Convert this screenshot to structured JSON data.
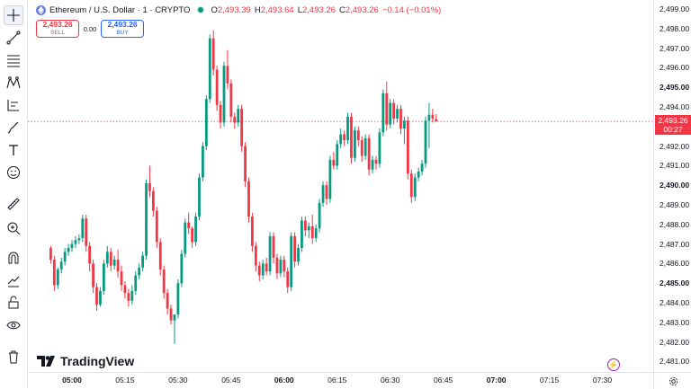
{
  "legend": {
    "symbol": "Ethereum / U.S. Dollar · 1 · CRYPTO",
    "o_label": "O",
    "o_value": "2,493.39",
    "h_label": "H",
    "h_value": "2,493.64",
    "l_label": "L",
    "l_value": "2,493.26",
    "c_label": "C",
    "c_value": "2,493.26",
    "change": "−0.14 (−0.01%)"
  },
  "trade": {
    "sell_price": "2,493.26",
    "sell_label": "SELL",
    "spread": "0.00",
    "buy_price": "2,493.26",
    "buy_label": "BUY"
  },
  "price_scale": {
    "labels": [
      "2,499.00",
      "2,498.00",
      "2,497.00",
      "2,496.00",
      "2,495.00",
      "2,494.00",
      "2,492.00",
      "2,491.00",
      "2,490.00",
      "2,489.00",
      "2,488.00",
      "2,487.00",
      "2,486.00",
      "2,485.00",
      "2,484.00",
      "2,483.00",
      "2,482.00",
      "2,481.00"
    ],
    "current_price": "2,493.26",
    "countdown": "00:27"
  },
  "time_scale": {
    "labels": [
      "05:00",
      "05:15",
      "05:30",
      "05:45",
      "06:00",
      "06:15",
      "06:30",
      "06:45",
      "07:00",
      "07:15",
      "07:30"
    ]
  },
  "logo": "TradingView",
  "colors": {
    "up": "#089981",
    "down": "#f23645",
    "accent": "#2962ff"
  },
  "toolbar_icons": [
    "crosshair-icon",
    "trend-line-icon",
    "fib-icon",
    "pattern-icon",
    "prediction-icon",
    "brush-icon",
    "text-icon",
    "emoji-icon",
    "ruler-icon",
    "zoom-icon",
    "magnet-icon",
    "lock-drawing-icon",
    "unlock-icon",
    "eye-icon",
    "trash-icon"
  ],
  "chart_data": {
    "type": "candlestick",
    "ylim": [
      2481.0,
      2499.5
    ],
    "x_range": [
      "04:54",
      "07:35"
    ],
    "current_price": 2493.26,
    "candles": [
      [
        2486.8,
        2486.9,
        2486.0,
        2486.2
      ],
      [
        2486.2,
        2486.4,
        2484.6,
        2484.9
      ],
      [
        2484.9,
        2485.8,
        2484.7,
        2485.7
      ],
      [
        2485.7,
        2486.3,
        2485.5,
        2486.1
      ],
      [
        2486.1,
        2486.8,
        2485.9,
        2486.6
      ],
      [
        2486.6,
        2487.0,
        2486.4,
        2486.8
      ],
      [
        2486.8,
        2487.2,
        2486.6,
        2487.0
      ],
      [
        2487.0,
        2487.4,
        2486.8,
        2487.2
      ],
      [
        2487.2,
        2487.5,
        2487.0,
        2487.3
      ],
      [
        2487.3,
        2488.5,
        2487.1,
        2488.3
      ],
      [
        2488.3,
        2488.5,
        2486.6,
        2486.9
      ],
      [
        2486.9,
        2487.1,
        2485.6,
        2486.0
      ],
      [
        2486.0,
        2486.2,
        2484.5,
        2484.8
      ],
      [
        2484.8,
        2485.0,
        2483.6,
        2483.9
      ],
      [
        2483.9,
        2484.8,
        2483.8,
        2484.6
      ],
      [
        2484.6,
        2486.2,
        2484.4,
        2486.0
      ],
      [
        2486.0,
        2486.9,
        2485.8,
        2486.6
      ],
      [
        2486.6,
        2486.8,
        2485.6,
        2485.9
      ],
      [
        2485.9,
        2486.4,
        2485.7,
        2486.2
      ],
      [
        2486.2,
        2486.7,
        2485.3,
        2485.6
      ],
      [
        2485.6,
        2485.9,
        2484.6,
        2484.9
      ],
      [
        2484.9,
        2485.1,
        2484.2,
        2484.5
      ],
      [
        2484.5,
        2484.7,
        2483.8,
        2484.1
      ],
      [
        2484.1,
        2484.9,
        2483.9,
        2484.6
      ],
      [
        2484.6,
        2485.6,
        2484.4,
        2485.4
      ],
      [
        2485.4,
        2486.0,
        2485.2,
        2485.8
      ],
      [
        2485.8,
        2486.6,
        2485.6,
        2486.4
      ],
      [
        2486.4,
        2490.3,
        2486.2,
        2490.1
      ],
      [
        2490.1,
        2491.0,
        2489.4,
        2489.7
      ],
      [
        2489.7,
        2489.9,
        2488.4,
        2488.7
      ],
      [
        2488.7,
        2488.9,
        2486.8,
        2487.1
      ],
      [
        2487.1,
        2487.3,
        2485.4,
        2485.7
      ],
      [
        2485.7,
        2485.9,
        2484.2,
        2484.5
      ],
      [
        2484.5,
        2484.7,
        2483.4,
        2483.7
      ],
      [
        2483.7,
        2483.9,
        2482.9,
        2483.1
      ],
      [
        2483.1,
        2483.3,
        2481.9,
        2483.4
      ],
      [
        2483.4,
        2485.2,
        2483.2,
        2485.0
      ],
      [
        2485.0,
        2486.7,
        2484.8,
        2486.5
      ],
      [
        2486.5,
        2488.3,
        2486.3,
        2488.1
      ],
      [
        2488.1,
        2488.6,
        2487.5,
        2487.8
      ],
      [
        2487.8,
        2487.9,
        2486.8,
        2487.1
      ],
      [
        2487.1,
        2488.6,
        2486.9,
        2488.4
      ],
      [
        2488.4,
        2490.6,
        2488.2,
        2490.4
      ],
      [
        2490.4,
        2492.2,
        2490.2,
        2492.0
      ],
      [
        2492.0,
        2494.6,
        2491.8,
        2494.4
      ],
      [
        2494.4,
        2497.7,
        2494.2,
        2497.5
      ],
      [
        2497.5,
        2497.9,
        2495.6,
        2495.9
      ],
      [
        2495.9,
        2496.1,
        2493.8,
        2494.1
      ],
      [
        2494.1,
        2494.3,
        2492.9,
        2493.2
      ],
      [
        2493.2,
        2496.3,
        2493.0,
        2496.1
      ],
      [
        2496.1,
        2496.9,
        2494.9,
        2495.2
      ],
      [
        2495.2,
        2495.4,
        2493.2,
        2493.5
      ],
      [
        2493.5,
        2493.7,
        2492.9,
        2493.2
      ],
      [
        2493.2,
        2494.1,
        2493.0,
        2493.9
      ],
      [
        2493.9,
        2494.1,
        2491.7,
        2492.0
      ],
      [
        2492.0,
        2492.2,
        2489.9,
        2490.2
      ],
      [
        2490.2,
        2490.4,
        2488.1,
        2488.4
      ],
      [
        2488.4,
        2488.6,
        2486.6,
        2486.9
      ],
      [
        2486.9,
        2487.1,
        2485.6,
        2485.9
      ],
      [
        2485.9,
        2486.1,
        2485.1,
        2485.4
      ],
      [
        2485.4,
        2486.2,
        2485.2,
        2486.0
      ],
      [
        2486.0,
        2486.3,
        2485.4,
        2485.6
      ],
      [
        2485.6,
        2487.6,
        2485.4,
        2487.4
      ],
      [
        2487.4,
        2487.6,
        2486.0,
        2486.3
      ],
      [
        2486.3,
        2486.5,
        2485.2,
        2485.5
      ],
      [
        2485.5,
        2486.4,
        2485.3,
        2486.2
      ],
      [
        2486.2,
        2486.4,
        2485.3,
        2485.6
      ],
      [
        2485.6,
        2485.8,
        2484.5,
        2484.8
      ],
      [
        2484.8,
        2487.6,
        2484.6,
        2487.4
      ],
      [
        2487.4,
        2487.6,
        2485.8,
        2486.1
      ],
      [
        2486.1,
        2487.0,
        2485.9,
        2486.8
      ],
      [
        2486.8,
        2488.4,
        2486.6,
        2488.2
      ],
      [
        2488.2,
        2488.4,
        2487.4,
        2487.7
      ],
      [
        2487.7,
        2488.1,
        2487.3,
        2487.9
      ],
      [
        2487.9,
        2488.5,
        2487.0,
        2487.3
      ],
      [
        2487.3,
        2488.0,
        2487.1,
        2487.8
      ],
      [
        2487.8,
        2489.3,
        2487.6,
        2489.1
      ],
      [
        2489.1,
        2490.2,
        2488.9,
        2490.0
      ],
      [
        2490.0,
        2490.2,
        2489.0,
        2489.3
      ],
      [
        2489.3,
        2491.5,
        2489.1,
        2491.3
      ],
      [
        2491.3,
        2491.7,
        2490.8,
        2491.0
      ],
      [
        2491.0,
        2492.3,
        2490.8,
        2492.1
      ],
      [
        2492.1,
        2492.9,
        2491.9,
        2492.6
      ],
      [
        2492.6,
        2492.8,
        2492.0,
        2492.3
      ],
      [
        2492.3,
        2493.7,
        2492.1,
        2493.5
      ],
      [
        2493.5,
        2493.7,
        2491.1,
        2491.4
      ],
      [
        2491.4,
        2493.0,
        2491.2,
        2492.8
      ],
      [
        2492.8,
        2493.0,
        2492.0,
        2492.3
      ],
      [
        2492.3,
        2492.5,
        2491.2,
        2491.5
      ],
      [
        2491.5,
        2492.6,
        2491.3,
        2492.4
      ],
      [
        2492.4,
        2492.6,
        2490.5,
        2490.8
      ],
      [
        2490.8,
        2491.5,
        2490.6,
        2491.3
      ],
      [
        2491.3,
        2491.5,
        2490.8,
        2491.1
      ],
      [
        2491.1,
        2492.9,
        2490.9,
        2492.7
      ],
      [
        2492.7,
        2494.9,
        2492.5,
        2494.7
      ],
      [
        2494.7,
        2495.3,
        2492.8,
        2493.1
      ],
      [
        2493.1,
        2494.4,
        2492.9,
        2494.2
      ],
      [
        2494.2,
        2494.4,
        2493.1,
        2493.4
      ],
      [
        2493.4,
        2494.1,
        2493.2,
        2493.9
      ],
      [
        2493.9,
        2494.1,
        2492.6,
        2492.9
      ],
      [
        2492.9,
        2493.5,
        2492.1,
        2493.3
      ],
      [
        2493.3,
        2493.5,
        2490.3,
        2490.6
      ],
      [
        2490.6,
        2490.8,
        2489.1,
        2489.4
      ],
      [
        2489.4,
        2490.6,
        2489.2,
        2490.4
      ],
      [
        2490.4,
        2490.9,
        2490.2,
        2490.7
      ],
      [
        2490.7,
        2491.3,
        2490.5,
        2491.1
      ],
      [
        2491.1,
        2493.5,
        2490.9,
        2493.3
      ],
      [
        2493.3,
        2494.2,
        2491.9,
        2493.6
      ],
      [
        2493.6,
        2493.9,
        2493.2,
        2493.4
      ],
      [
        2493.39,
        2493.64,
        2493.26,
        2493.26
      ]
    ]
  }
}
